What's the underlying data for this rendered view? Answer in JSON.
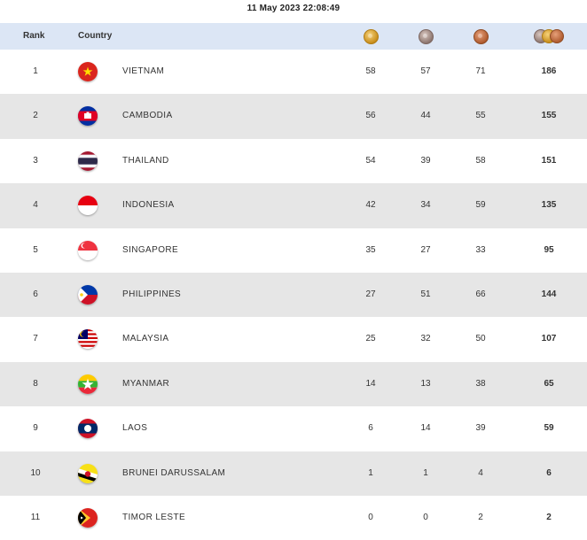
{
  "timestamp": "11 May 2023  22:08:49",
  "header": {
    "rank_label": "Rank",
    "country_label": "Country",
    "gold_icon": "gold-medal-icon",
    "silver_icon": "silver-medal-icon",
    "bronze_icon": "bronze-medal-icon",
    "total_icon": "total-medals-icon"
  },
  "colors": {
    "header_bg": "#dce6f5",
    "alt_row_bg": "#e6e6e6"
  },
  "rows": [
    {
      "rank": "1",
      "country": "VIETNAM",
      "flag": "vietnam-flag-icon",
      "gold": "58",
      "silver": "57",
      "bronze": "71",
      "total": "186"
    },
    {
      "rank": "2",
      "country": "CAMBODIA",
      "flag": "cambodia-flag-icon",
      "gold": "56",
      "silver": "44",
      "bronze": "55",
      "total": "155"
    },
    {
      "rank": "3",
      "country": "THAILAND",
      "flag": "thailand-flag-icon",
      "gold": "54",
      "silver": "39",
      "bronze": "58",
      "total": "151"
    },
    {
      "rank": "4",
      "country": "INDONESIA",
      "flag": "indonesia-flag-icon",
      "gold": "42",
      "silver": "34",
      "bronze": "59",
      "total": "135"
    },
    {
      "rank": "5",
      "country": "SINGAPORE",
      "flag": "singapore-flag-icon",
      "gold": "35",
      "silver": "27",
      "bronze": "33",
      "total": "95"
    },
    {
      "rank": "6",
      "country": "PHILIPPINES",
      "flag": "philippines-flag-icon",
      "gold": "27",
      "silver": "51",
      "bronze": "66",
      "total": "144"
    },
    {
      "rank": "7",
      "country": "MALAYSIA",
      "flag": "malaysia-flag-icon",
      "gold": "25",
      "silver": "32",
      "bronze": "50",
      "total": "107"
    },
    {
      "rank": "8",
      "country": "MYANMAR",
      "flag": "myanmar-flag-icon",
      "gold": "14",
      "silver": "13",
      "bronze": "38",
      "total": "65"
    },
    {
      "rank": "9",
      "country": "LAOS",
      "flag": "laos-flag-icon",
      "gold": "6",
      "silver": "14",
      "bronze": "39",
      "total": "59"
    },
    {
      "rank": "10",
      "country": "BRUNEI DARUSSALAM",
      "flag": "brunei-flag-icon",
      "gold": "1",
      "silver": "1",
      "bronze": "4",
      "total": "6"
    },
    {
      "rank": "11",
      "country": "TIMOR LESTE",
      "flag": "timor-leste-flag-icon",
      "gold": "0",
      "silver": "0",
      "bronze": "2",
      "total": "2"
    }
  ]
}
